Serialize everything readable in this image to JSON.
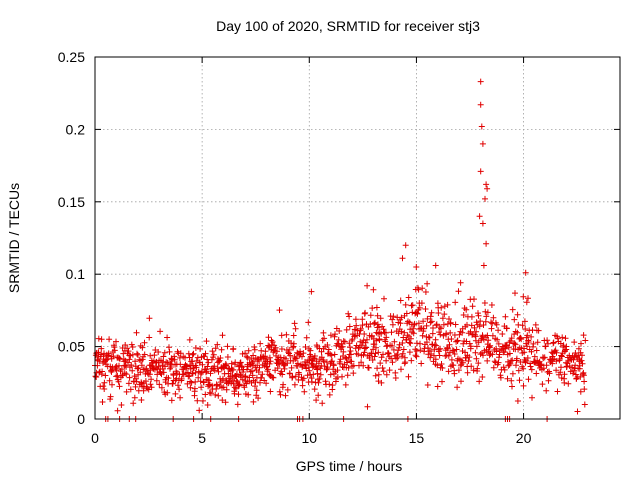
{
  "chart_data": {
    "type": "scatter",
    "title": "Day 100 of 2020, SRMTID for receiver stj3",
    "xlabel": "GPS time / hours",
    "ylabel": "SRMTID / TECUs",
    "xlim": [
      0,
      24.5
    ],
    "ylim": [
      0,
      0.25
    ],
    "x_ticks": [
      0,
      5,
      10,
      15,
      20
    ],
    "x_tick_labels": [
      "0",
      "5",
      "10",
      "15",
      "20"
    ],
    "y_ticks": [
      0,
      0.05,
      0.1,
      0.15,
      0.2,
      0.25
    ],
    "y_tick_labels": [
      "0",
      "0.05",
      "0.1",
      "0.15",
      "0.2",
      "0.25"
    ],
    "grid": true,
    "marker": "+",
    "color": "#e00000",
    "series": [
      {
        "name": "SRMTID",
        "profile_points": [
          {
            "x": 0.0,
            "y": 0.04
          },
          {
            "x": 1.0,
            "y": 0.036
          },
          {
            "x": 2.0,
            "y": 0.034
          },
          {
            "x": 3.0,
            "y": 0.035
          },
          {
            "x": 4.0,
            "y": 0.034
          },
          {
            "x": 5.0,
            "y": 0.033
          },
          {
            "x": 6.0,
            "y": 0.032
          },
          {
            "x": 7.0,
            "y": 0.03
          },
          {
            "x": 8.0,
            "y": 0.036
          },
          {
            "x": 9.0,
            "y": 0.042
          },
          {
            "x": 10.0,
            "y": 0.036
          },
          {
            "x": 11.0,
            "y": 0.04
          },
          {
            "x": 12.0,
            "y": 0.048
          },
          {
            "x": 13.0,
            "y": 0.056
          },
          {
            "x": 14.0,
            "y": 0.052
          },
          {
            "x": 15.0,
            "y": 0.062
          },
          {
            "x": 16.0,
            "y": 0.054
          },
          {
            "x": 17.0,
            "y": 0.052
          },
          {
            "x": 18.0,
            "y": 0.056
          },
          {
            "x": 19.0,
            "y": 0.044
          },
          {
            "x": 20.0,
            "y": 0.052
          },
          {
            "x": 21.0,
            "y": 0.04
          },
          {
            "x": 22.0,
            "y": 0.04
          },
          {
            "x": 22.9,
            "y": 0.036
          }
        ],
        "outliers": [
          {
            "x": 18.0,
            "y": 0.233
          },
          {
            "x": 18.0,
            "y": 0.217
          },
          {
            "x": 18.05,
            "y": 0.202
          },
          {
            "x": 18.1,
            "y": 0.19
          },
          {
            "x": 18.0,
            "y": 0.171
          },
          {
            "x": 18.25,
            "y": 0.162
          },
          {
            "x": 18.3,
            "y": 0.159
          },
          {
            "x": 18.2,
            "y": 0.152
          },
          {
            "x": 17.95,
            "y": 0.14
          },
          {
            "x": 18.1,
            "y": 0.135
          },
          {
            "x": 18.25,
            "y": 0.121
          },
          {
            "x": 18.15,
            "y": 0.106
          },
          {
            "x": 14.5,
            "y": 0.12
          },
          {
            "x": 14.35,
            "y": 0.111
          },
          {
            "x": 15.9,
            "y": 0.106
          },
          {
            "x": 20.1,
            "y": 0.101
          },
          {
            "x": 10.1,
            "y": 0.088
          },
          {
            "x": 12.7,
            "y": 0.092
          }
        ],
        "zero_points_x": [
          0.5,
          0.6,
          1.15,
          1.6,
          1.9,
          3.65,
          4.6,
          5.4,
          6.7,
          9.45,
          9.55,
          9.7,
          11.6,
          14.6,
          19.15,
          19.25,
          19.35,
          21.1
        ]
      }
    ]
  }
}
